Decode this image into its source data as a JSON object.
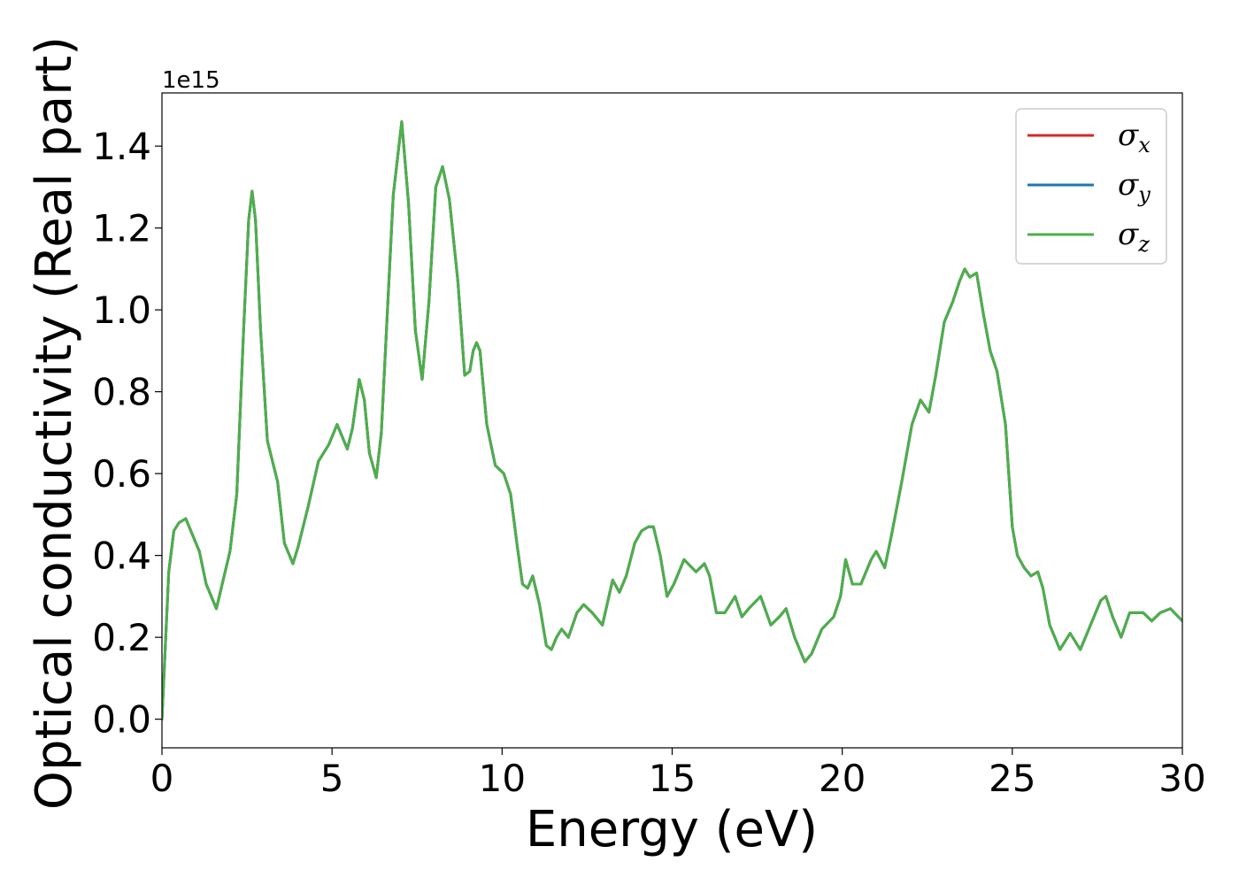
{
  "chart_data": {
    "type": "line",
    "title": "",
    "xlabel": "Energy (eV)",
    "ylabel": "Optical conductivity (Real part)",
    "y_offset_label": "1e15",
    "xlim": [
      0,
      30
    ],
    "ylim": [
      -0.07,
      1.53
    ],
    "xticks": [
      0,
      5,
      10,
      15,
      20,
      25,
      30
    ],
    "xtick_labels": [
      "0",
      "5",
      "10",
      "15",
      "20",
      "25",
      "30"
    ],
    "yticks": [
      0.0,
      0.2,
      0.4,
      0.6,
      0.8,
      1.0,
      1.2,
      1.4
    ],
    "ytick_labels": [
      "0.0",
      "0.2",
      "0.4",
      "0.6",
      "0.8",
      "1.0",
      "1.2",
      "1.4"
    ],
    "grid": false,
    "legend_position": "top-right",
    "colors": {
      "sigma_x": "#d62728",
      "sigma_y": "#1f77b4",
      "sigma_z": "#4daf4a"
    },
    "series": [
      {
        "key": "sigma_x",
        "symbol": "σ",
        "subscript": "x"
      },
      {
        "key": "sigma_y",
        "symbol": "σ",
        "subscript": "y"
      },
      {
        "key": "sigma_z",
        "symbol": "σ",
        "subscript": "z"
      }
    ],
    "x": [
      0.0,
      0.1,
      0.2,
      0.35,
      0.5,
      0.7,
      0.9,
      1.1,
      1.3,
      1.6,
      1.8,
      2.0,
      2.2,
      2.4,
      2.55,
      2.65,
      2.75,
      2.9,
      3.1,
      3.4,
      3.6,
      3.85,
      4.0,
      4.3,
      4.6,
      4.9,
      5.15,
      5.3,
      5.45,
      5.6,
      5.8,
      5.95,
      6.1,
      6.3,
      6.45,
      6.6,
      6.8,
      7.05,
      7.25,
      7.45,
      7.65,
      7.85,
      8.05,
      8.25,
      8.45,
      8.7,
      8.9,
      9.05,
      9.15,
      9.25,
      9.35,
      9.55,
      9.8,
      10.05,
      10.25,
      10.45,
      10.6,
      10.75,
      10.9,
      11.1,
      11.3,
      11.45,
      11.6,
      11.75,
      11.95,
      12.2,
      12.4,
      12.65,
      12.95,
      13.25,
      13.45,
      13.65,
      13.9,
      14.1,
      14.3,
      14.45,
      14.65,
      14.85,
      15.05,
      15.35,
      15.7,
      15.95,
      16.1,
      16.3,
      16.55,
      16.85,
      17.05,
      17.25,
      17.6,
      17.9,
      18.15,
      18.35,
      18.6,
      18.9,
      19.1,
      19.4,
      19.75,
      19.95,
      20.1,
      20.3,
      20.55,
      20.85,
      21.0,
      21.25,
      21.45,
      21.75,
      22.05,
      22.3,
      22.55,
      22.75,
      23.0,
      23.25,
      23.45,
      23.6,
      23.75,
      23.95,
      24.15,
      24.35,
      24.55,
      24.8,
      25.0,
      25.15,
      25.35,
      25.55,
      25.75,
      25.9,
      26.1,
      26.4,
      26.7,
      26.85,
      27.0,
      27.3,
      27.6,
      27.75,
      27.95,
      28.2,
      28.45,
      28.65,
      28.85,
      29.1,
      29.35,
      29.65,
      30.0
    ],
    "values": [
      0.0,
      0.18,
      0.36,
      0.46,
      0.48,
      0.49,
      0.45,
      0.41,
      0.33,
      0.27,
      0.34,
      0.41,
      0.55,
      0.95,
      1.22,
      1.29,
      1.22,
      0.95,
      0.68,
      0.58,
      0.43,
      0.38,
      0.42,
      0.52,
      0.63,
      0.67,
      0.72,
      0.69,
      0.66,
      0.71,
      0.83,
      0.78,
      0.65,
      0.59,
      0.7,
      0.95,
      1.28,
      1.46,
      1.26,
      0.95,
      0.83,
      1.02,
      1.3,
      1.35,
      1.27,
      1.07,
      0.84,
      0.85,
      0.9,
      0.92,
      0.9,
      0.72,
      0.62,
      0.6,
      0.55,
      0.42,
      0.33,
      0.32,
      0.35,
      0.28,
      0.18,
      0.17,
      0.2,
      0.22,
      0.2,
      0.26,
      0.28,
      0.26,
      0.23,
      0.34,
      0.31,
      0.35,
      0.43,
      0.46,
      0.47,
      0.47,
      0.4,
      0.3,
      0.33,
      0.39,
      0.36,
      0.38,
      0.35,
      0.26,
      0.26,
      0.3,
      0.25,
      0.27,
      0.3,
      0.23,
      0.25,
      0.27,
      0.2,
      0.14,
      0.16,
      0.22,
      0.25,
      0.3,
      0.39,
      0.33,
      0.33,
      0.39,
      0.41,
      0.37,
      0.45,
      0.58,
      0.72,
      0.78,
      0.75,
      0.84,
      0.97,
      1.02,
      1.07,
      1.1,
      1.08,
      1.09,
      0.99,
      0.9,
      0.85,
      0.72,
      0.47,
      0.4,
      0.37,
      0.35,
      0.36,
      0.32,
      0.23,
      0.17,
      0.21,
      0.19,
      0.17,
      0.23,
      0.29,
      0.3,
      0.25,
      0.2,
      0.26,
      0.26,
      0.26,
      0.24,
      0.26,
      0.27,
      0.24
    ]
  }
}
